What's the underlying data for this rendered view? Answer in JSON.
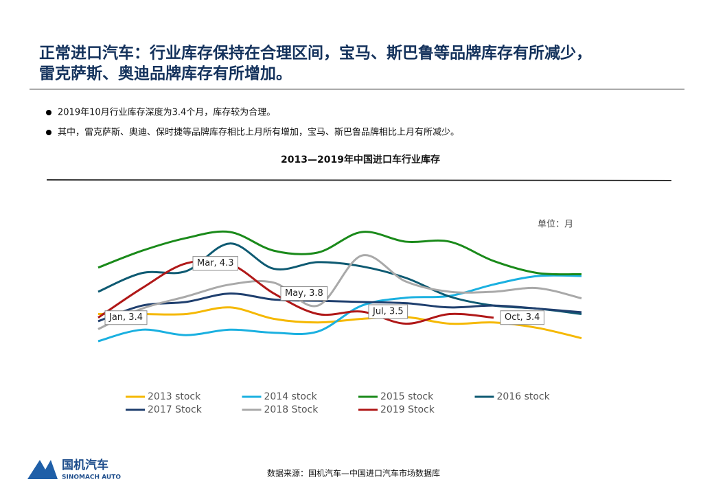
{
  "header": {
    "title_lines": [
      "正常进口汽车：行业库存保持在合理区间，宝马、斯巴鲁等品牌库存有所减少，",
      "雷克萨斯、奥迪品牌库存有所增加。"
    ]
  },
  "bullets": [
    "2019年10月行业库存深度为3.4个月，库存较为合理。",
    "其中，雷克萨斯、奥迪、保时捷等品牌库存相比上月所有增加，宝马、斯巴鲁品牌相比上月有所减少。"
  ],
  "chart_data": {
    "type": "line",
    "title": "2013—2019年中国进口车行业库存",
    "unit": "单位：月",
    "series": [
      {
        "name": "2013 stock",
        "color": "#f5b800",
        "values": [
          3.46,
          3.46,
          3.46,
          3.57,
          3.38,
          3.32,
          3.38,
          3.41,
          3.3,
          3.32,
          3.23,
          3.06
        ]
      },
      {
        "name": "2014 stock",
        "color": "#1ab0e0",
        "values": [
          3.01,
          3.2,
          3.11,
          3.2,
          3.15,
          3.17,
          3.6,
          3.73,
          3.76,
          3.95,
          4.09,
          4.09
        ]
      },
      {
        "name": "2015 stock",
        "color": "#1a8a1a",
        "values": [
          4.23,
          4.51,
          4.72,
          4.82,
          4.51,
          4.48,
          4.82,
          4.66,
          4.66,
          4.34,
          4.14,
          4.12
        ]
      },
      {
        "name": "2016 stock",
        "color": "#0e5a72",
        "values": [
          3.83,
          4.14,
          4.17,
          4.63,
          4.21,
          4.32,
          4.25,
          4.06,
          3.75,
          3.6,
          3.55,
          3.46
        ]
      },
      {
        "name": "2017 Stock",
        "color": "#1f3f6e",
        "values": [
          3.34,
          3.6,
          3.66,
          3.8,
          3.7,
          3.68,
          3.66,
          3.64,
          3.57,
          3.6,
          3.55,
          3.49
        ]
      },
      {
        "name": "2018 Stock",
        "color": "#a9a9a9",
        "values": [
          3.21,
          3.55,
          3.75,
          3.95,
          3.98,
          3.6,
          4.43,
          4.0,
          3.83,
          3.83,
          3.89,
          3.72
        ]
      },
      {
        "name": "2019 Stock",
        "color": "#b01818",
        "values": [
          3.4,
          3.89,
          4.3,
          4.29,
          3.8,
          3.46,
          3.5,
          3.3,
          3.46,
          3.4
        ],
        "value_labels": [
          "Jan, 3.4",
          null,
          "Mar, 4.3",
          null,
          "May, 3.8",
          null,
          "Jul, 3.5",
          null,
          null,
          "Oct, 3.4"
        ]
      }
    ]
  },
  "footer": {
    "source": "数据来源：国机汽车—中国进口汽车市场数据库",
    "logo": "国机汽车",
    "logo_sub": "SINOMACH AUTO"
  }
}
